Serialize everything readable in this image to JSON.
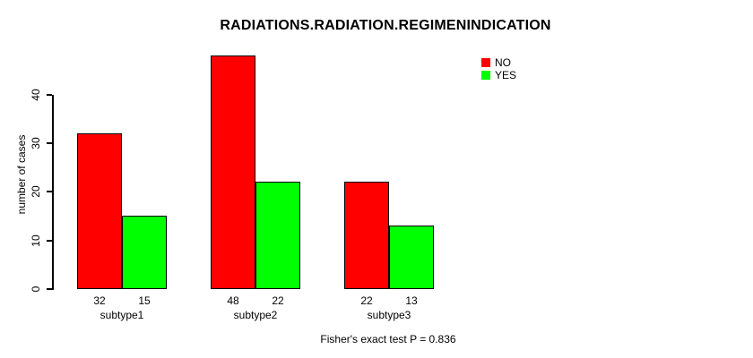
{
  "chart_data": {
    "type": "bar",
    "title": "RADIATIONS.RADIATION.REGIMENINDICATION",
    "xlabel": "",
    "ylabel": "number of cases",
    "categories": [
      "subtype1",
      "subtype2",
      "subtype3"
    ],
    "series": [
      {
        "name": "NO",
        "color": "#ff0000",
        "values": [
          32,
          48,
          22
        ]
      },
      {
        "name": "YES",
        "color": "#00ff00",
        "values": [
          15,
          22,
          13
        ]
      }
    ],
    "bar_value_labels_shown": true,
    "yticks": [
      0,
      10,
      20,
      30,
      40
    ],
    "ylim": [
      0,
      48
    ],
    "grid": false,
    "legend_position": "topright",
    "bar_border_color": "#000000",
    "background_color": "#ffffff",
    "annotation": "Fisher's exact test P = 0.836"
  }
}
